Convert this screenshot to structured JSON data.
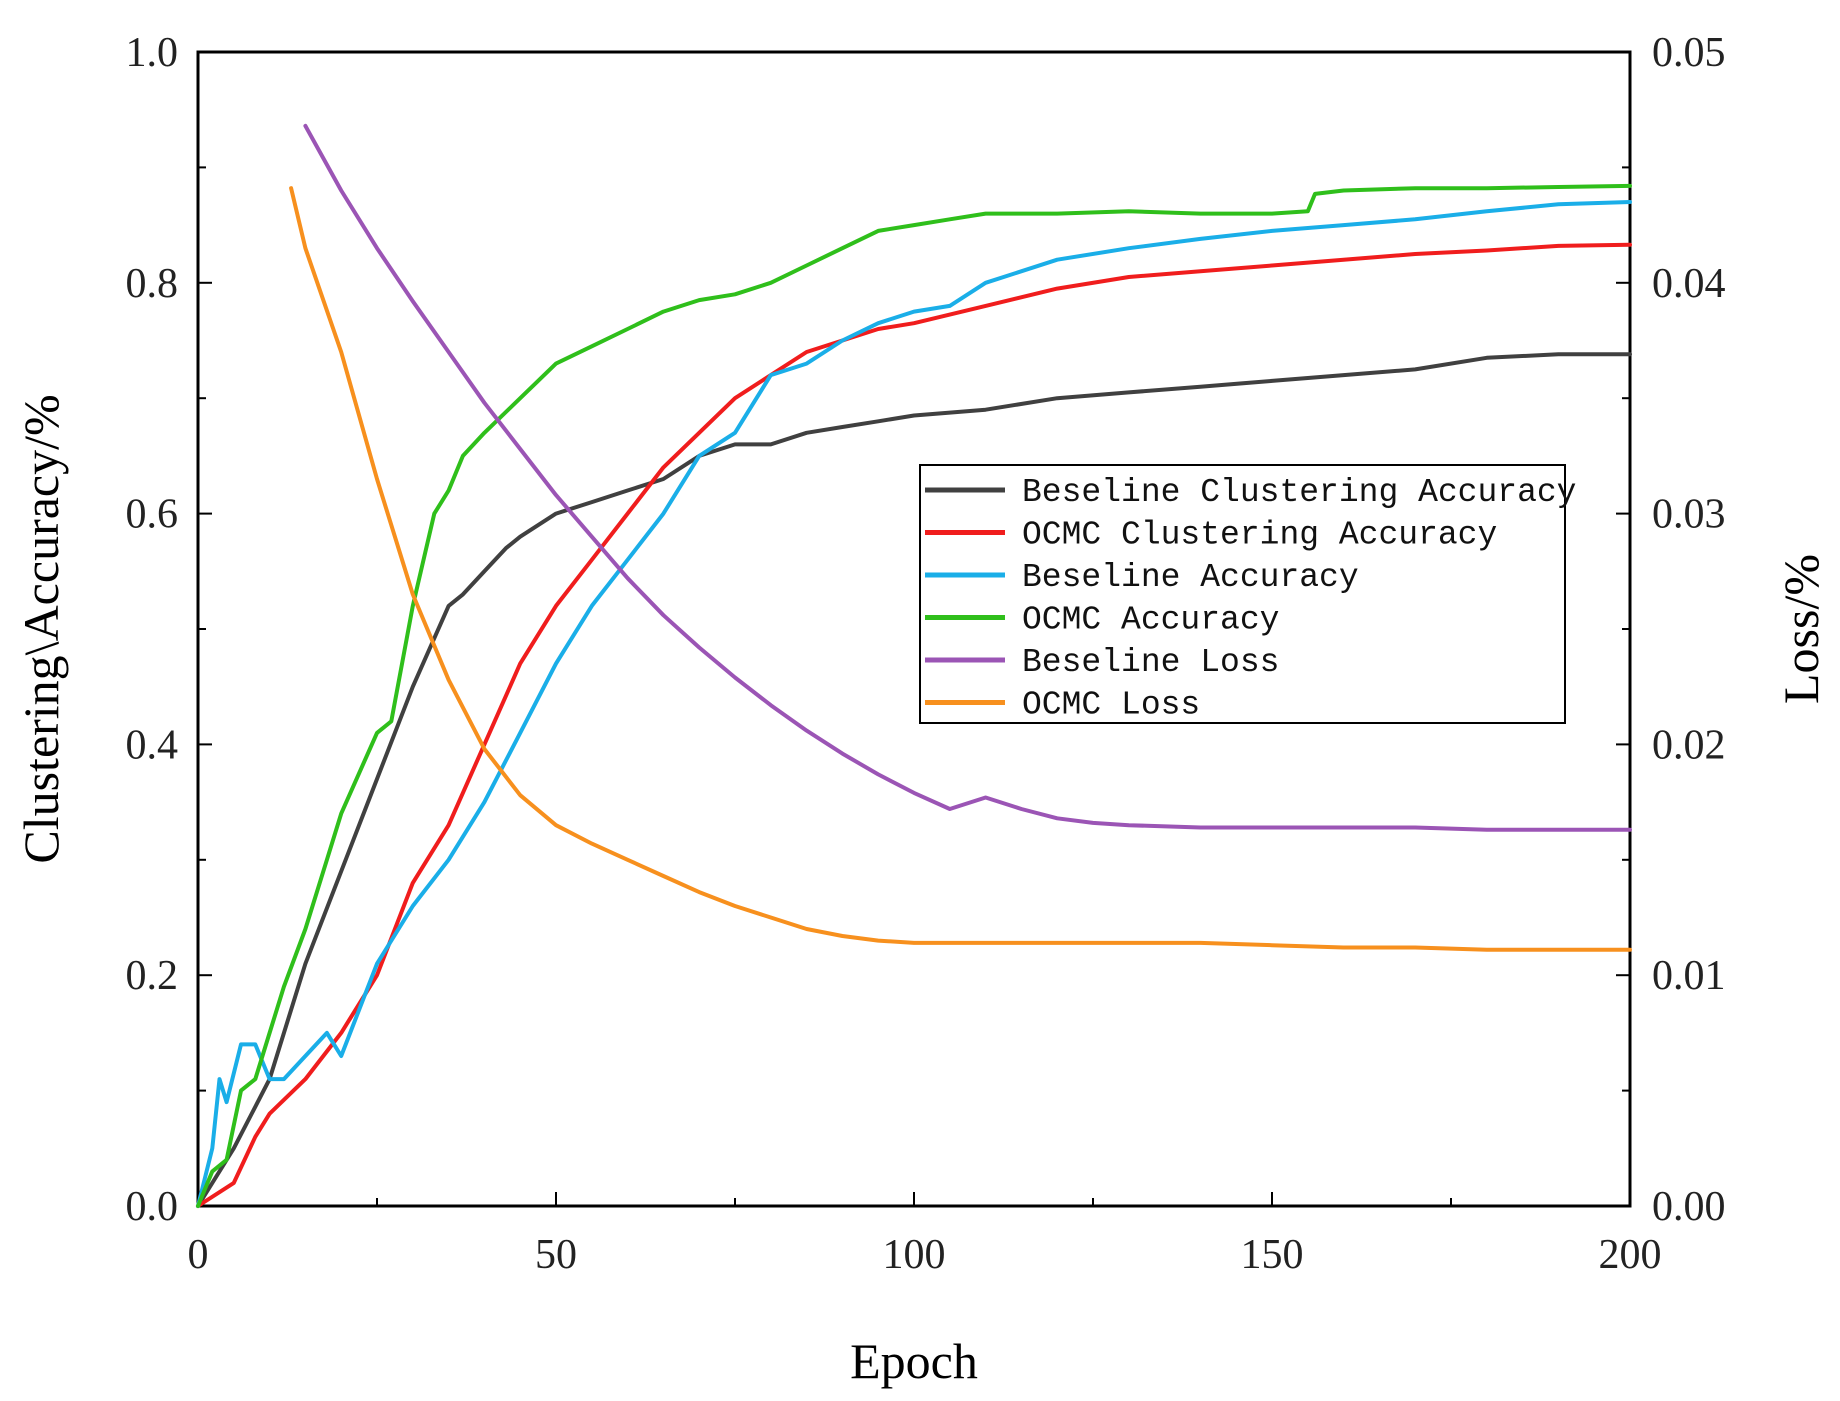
{
  "chart_data": {
    "type": "line",
    "xlabel": "Epoch",
    "ylabel": "Clustering\\Accuracy/%",
    "y2label": "Loss/%",
    "xlim": [
      0,
      200
    ],
    "ylim": [
      0,
      1.0
    ],
    "y2lim": [
      0,
      0.05
    ],
    "x_ticks": [
      "0",
      "50",
      "100",
      "150",
      "200"
    ],
    "y_ticks": [
      "0.0",
      "0.2",
      "0.4",
      "0.6",
      "0.8",
      "1.0"
    ],
    "y2_ticks": [
      "0.00",
      "0.01",
      "0.02",
      "0.03",
      "0.04",
      "0.05"
    ],
    "grid": false,
    "legend_position": "center-right",
    "series": [
      {
        "name": "Beseline Clustering Accuracy",
        "axis": "left",
        "color": "#404040",
        "x": [
          0,
          5,
          10,
          15,
          20,
          25,
          30,
          35,
          37,
          40,
          43,
          45,
          50,
          55,
          60,
          65,
          70,
          75,
          80,
          85,
          90,
          95,
          100,
          110,
          120,
          130,
          140,
          150,
          160,
          170,
          180,
          190,
          200
        ],
        "y": [
          0.0,
          0.05,
          0.11,
          0.21,
          0.29,
          0.37,
          0.45,
          0.52,
          0.53,
          0.55,
          0.57,
          0.58,
          0.6,
          0.61,
          0.62,
          0.63,
          0.65,
          0.66,
          0.66,
          0.67,
          0.675,
          0.68,
          0.685,
          0.69,
          0.7,
          0.705,
          0.71,
          0.715,
          0.72,
          0.725,
          0.735,
          0.738,
          0.738
        ]
      },
      {
        "name": "OCMC Clustering Accuracy",
        "axis": "left",
        "color": "#f01d1d",
        "x": [
          0,
          5,
          8,
          10,
          15,
          20,
          25,
          30,
          35,
          40,
          45,
          50,
          55,
          60,
          65,
          70,
          75,
          80,
          85,
          90,
          95,
          100,
          110,
          120,
          130,
          140,
          150,
          160,
          170,
          180,
          190,
          200
        ],
        "y": [
          0.0,
          0.02,
          0.06,
          0.08,
          0.11,
          0.15,
          0.2,
          0.28,
          0.33,
          0.4,
          0.47,
          0.52,
          0.56,
          0.6,
          0.64,
          0.67,
          0.7,
          0.72,
          0.74,
          0.75,
          0.76,
          0.765,
          0.78,
          0.795,
          0.805,
          0.81,
          0.815,
          0.82,
          0.825,
          0.828,
          0.832,
          0.833
        ]
      },
      {
        "name": "Beseline Accuracy",
        "axis": "left",
        "color": "#1aaee8",
        "x": [
          0,
          2,
          3,
          4,
          6,
          8,
          10,
          12,
          15,
          18,
          20,
          25,
          30,
          35,
          40,
          45,
          50,
          55,
          60,
          65,
          70,
          75,
          80,
          85,
          90,
          95,
          100,
          105,
          110,
          120,
          130,
          140,
          150,
          160,
          170,
          180,
          190,
          200
        ],
        "y": [
          0.0,
          0.05,
          0.11,
          0.09,
          0.14,
          0.14,
          0.11,
          0.11,
          0.13,
          0.15,
          0.13,
          0.21,
          0.26,
          0.3,
          0.35,
          0.41,
          0.47,
          0.52,
          0.56,
          0.6,
          0.65,
          0.67,
          0.72,
          0.73,
          0.75,
          0.765,
          0.775,
          0.78,
          0.8,
          0.82,
          0.83,
          0.838,
          0.845,
          0.85,
          0.855,
          0.862,
          0.868,
          0.87
        ]
      },
      {
        "name": "OCMC Accuracy",
        "axis": "left",
        "color": "#2fbf1b",
        "x": [
          0,
          2,
          4,
          6,
          8,
          10,
          12,
          15,
          18,
          20,
          25,
          27,
          30,
          33,
          35,
          37,
          40,
          45,
          50,
          55,
          60,
          65,
          70,
          75,
          80,
          85,
          90,
          95,
          100,
          105,
          110,
          120,
          130,
          140,
          150,
          155,
          156,
          160,
          170,
          180,
          190,
          200
        ],
        "y": [
          0.0,
          0.03,
          0.04,
          0.1,
          0.11,
          0.15,
          0.19,
          0.24,
          0.3,
          0.34,
          0.41,
          0.42,
          0.52,
          0.6,
          0.62,
          0.65,
          0.67,
          0.7,
          0.73,
          0.745,
          0.76,
          0.775,
          0.785,
          0.79,
          0.8,
          0.815,
          0.83,
          0.845,
          0.85,
          0.855,
          0.86,
          0.86,
          0.862,
          0.86,
          0.86,
          0.862,
          0.877,
          0.88,
          0.882,
          0.882,
          0.883,
          0.884
        ]
      },
      {
        "name": "Beseline Loss",
        "axis": "right",
        "color": "#9b55b5",
        "x": [
          15,
          20,
          25,
          30,
          35,
          40,
          45,
          50,
          55,
          60,
          65,
          70,
          75,
          80,
          85,
          90,
          95,
          100,
          105,
          110,
          115,
          120,
          125,
          130,
          140,
          150,
          160,
          170,
          180,
          190,
          200
        ],
        "y": [
          0.0468,
          0.044,
          0.0415,
          0.0392,
          0.037,
          0.0348,
          0.0328,
          0.0308,
          0.029,
          0.0272,
          0.0256,
          0.0242,
          0.0229,
          0.0217,
          0.0206,
          0.0196,
          0.0187,
          0.0179,
          0.0172,
          0.0177,
          0.0172,
          0.0168,
          0.0166,
          0.0165,
          0.0164,
          0.0164,
          0.0164,
          0.0164,
          0.0163,
          0.0163,
          0.0163
        ]
      },
      {
        "name": "OCMC Loss",
        "axis": "right",
        "color": "#f7901e",
        "x": [
          13,
          15,
          20,
          25,
          30,
          35,
          40,
          45,
          50,
          55,
          60,
          65,
          70,
          75,
          80,
          85,
          90,
          95,
          100,
          110,
          120,
          130,
          140,
          150,
          160,
          170,
          180,
          190,
          200
        ],
        "y": [
          0.0441,
          0.0415,
          0.037,
          0.0315,
          0.0265,
          0.0228,
          0.0198,
          0.0178,
          0.0165,
          0.0157,
          0.015,
          0.0143,
          0.0136,
          0.013,
          0.0125,
          0.012,
          0.0117,
          0.0115,
          0.0114,
          0.0114,
          0.0114,
          0.0114,
          0.0114,
          0.0113,
          0.0112,
          0.0112,
          0.0111,
          0.0111,
          0.0111
        ]
      }
    ]
  }
}
